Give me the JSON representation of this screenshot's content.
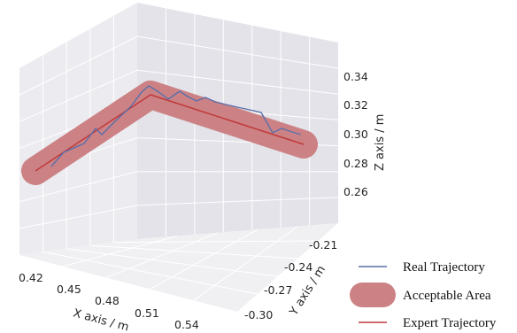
{
  "chart_data": {
    "type": "line",
    "projection": "3d",
    "xlabel": "X axis / m",
    "ylabel": "Y axis / m",
    "zlabel": "Z axis / m",
    "x_ticks": [
      "0.42",
      "0.45",
      "0.48",
      "0.51",
      "0.54"
    ],
    "y_ticks": [
      "-0.21",
      "-0.24",
      "-0.27",
      "-0.30"
    ],
    "z_ticks": [
      "0.34",
      "0.32",
      "0.30",
      "0.28",
      "0.26"
    ],
    "legend": [
      "Real Trajectory",
      "Acceptable Area",
      "Expert Trajectory"
    ],
    "legend_position": "bottom-right",
    "grid": true,
    "colors": {
      "real": "#5a6fa8",
      "expert": "#c0393b",
      "area": "#cc8285",
      "pane_left": "#ececf0",
      "pane_right": "#e4e4ea",
      "pane_floor": "#f1f1f4",
      "grid": "#ffffff"
    }
  }
}
